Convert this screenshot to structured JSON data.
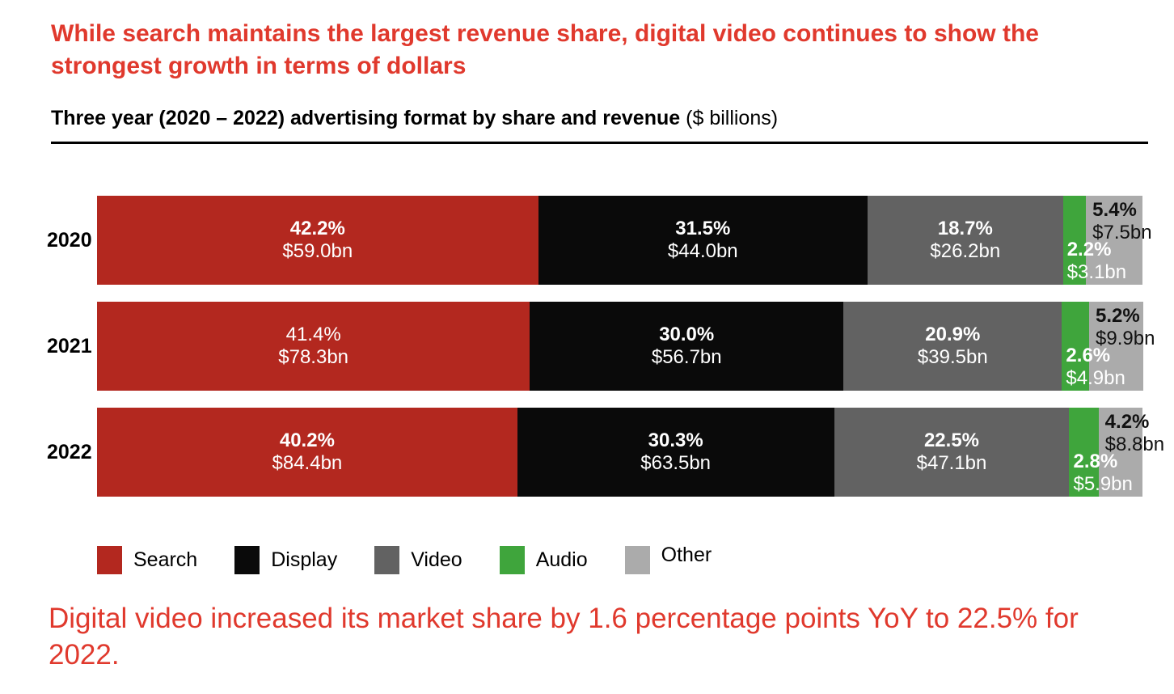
{
  "header": {
    "title": "While search maintains the largest revenue share, digital video continues to show the strongest growth in terms of dollars",
    "subtitle_bold": "Three year (2020 – 2022) advertising format by share and revenue",
    "subtitle_note": "($ billions)"
  },
  "colors": {
    "headline_red": "#E0392D",
    "search_red": "#B3281F",
    "display_black": "#0A0A0A",
    "video_gray": "#626262",
    "audio_green": "#3FA53C",
    "other_gray": "#ABABAB",
    "label_on_dark": "#FFFFFF",
    "label_on_light": "#111111"
  },
  "chart_data": {
    "type": "bar",
    "stacked": true,
    "orientation": "horizontal",
    "units": "% share (bar width) and $ billions (labels)",
    "categories": [
      "2020",
      "2021",
      "2022"
    ],
    "series": [
      {
        "name": "Search",
        "color": "#B3281F",
        "label_color": "#FFFFFF",
        "label_placement": "center",
        "share_pct": [
          42.2,
          41.4,
          40.2
        ],
        "revenue_bn": [
          59.0,
          78.3,
          84.4
        ],
        "pct_bold": [
          true,
          false,
          true
        ]
      },
      {
        "name": "Display",
        "color": "#0A0A0A",
        "label_color": "#FFFFFF",
        "label_placement": "center",
        "share_pct": [
          31.5,
          30.0,
          30.3
        ],
        "revenue_bn": [
          44.0,
          56.7,
          63.5
        ],
        "pct_bold": [
          true,
          true,
          true
        ]
      },
      {
        "name": "Video",
        "color": "#626262",
        "label_color": "#FFFFFF",
        "label_placement": "center",
        "share_pct": [
          18.7,
          20.9,
          22.5
        ],
        "revenue_bn": [
          26.2,
          39.5,
          47.1
        ],
        "pct_bold": [
          true,
          true,
          true
        ]
      },
      {
        "name": "Audio",
        "color": "#3FA53C",
        "label_color": "#FFFFFF",
        "label_placement": "bottom-left",
        "share_pct": [
          2.2,
          2.6,
          2.8
        ],
        "revenue_bn": [
          3.1,
          4.9,
          5.9
        ],
        "pct_bold": [
          true,
          true,
          true
        ]
      },
      {
        "name": "Other",
        "color": "#ABABAB",
        "label_color": "#111111",
        "label_placement": "top-left",
        "share_pct": [
          5.4,
          5.2,
          4.2
        ],
        "revenue_bn": [
          7.5,
          9.9,
          8.8
        ],
        "pct_bold": [
          true,
          true,
          true
        ]
      }
    ],
    "legend_position": "bottom"
  },
  "legend": {
    "items": [
      {
        "label": "Search",
        "color": "#B3281F"
      },
      {
        "label": "Display",
        "color": "#0A0A0A"
      },
      {
        "label": "Video",
        "color": "#626262"
      },
      {
        "label": "Audio",
        "color": "#3FA53C"
      },
      {
        "label": "Other",
        "color": "#ABABAB"
      }
    ]
  },
  "footer": {
    "text": "Digital video increased its market share by 1.6 percentage points YoY to 22.5% for 2022."
  }
}
